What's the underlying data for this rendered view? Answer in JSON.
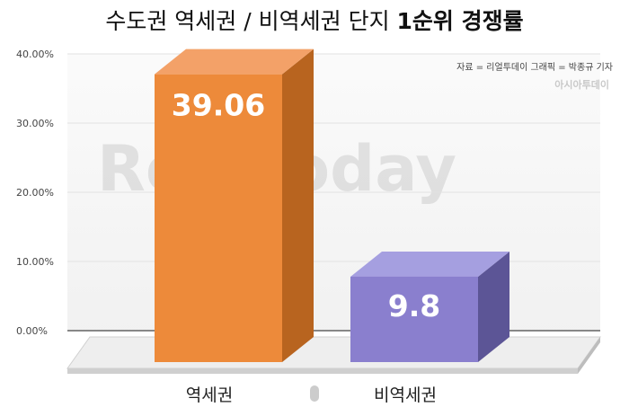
{
  "title": {
    "regular": "수도권 역세권 / 비역세권 단지 ",
    "bold": "1순위 경쟁률"
  },
  "credit": "자료 = 리얼투데이   그래픽 = 박종규 기자",
  "watermark_small": "아시아투데이",
  "watermark_large": "RealToday",
  "chart_data": {
    "type": "bar",
    "categories": [
      "역세권",
      "비역세권"
    ],
    "values": [
      39.06,
      9.8
    ],
    "value_labels": [
      "39.06",
      "9.8"
    ],
    "ylim": [
      0,
      40
    ],
    "yticks": [
      "0.00%",
      "10.00%",
      "20.00%",
      "30.00%",
      "40.00%"
    ],
    "ytick_values": [
      0,
      10,
      20,
      30,
      40
    ],
    "grid": true,
    "colors": {
      "bar1_front": "#ed8a3a",
      "bar1_top": "#f3a168",
      "bar1_side": "#b8641f",
      "bar2_front": "#8a7fce",
      "bar2_top": "#a59fe0",
      "bar2_side": "#5c5596"
    }
  }
}
